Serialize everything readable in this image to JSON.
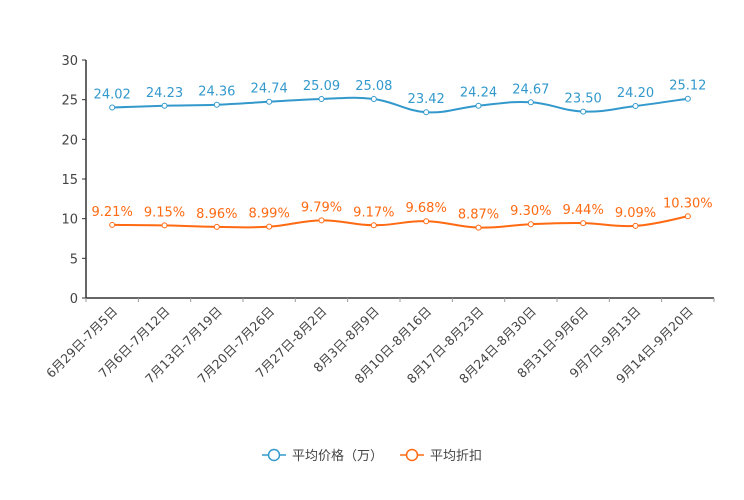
{
  "chart_data": {
    "type": "line",
    "categories": [
      "6月29日-7月5日",
      "7月6日-7月12日",
      "7月13日-7月19日",
      "7月20日-7月26日",
      "7月27日-8月2日",
      "8月3日-8月9日",
      "8月10日-8月16日",
      "8月17日-8月23日",
      "8月24日-8月30日",
      "8月31日-9月6日",
      "9月7日-9月13日",
      "9月14日-9月20日"
    ],
    "series": [
      {
        "name": "平均价格（万）",
        "color": "#3399cc",
        "values": [
          24.02,
          24.23,
          24.36,
          24.74,
          25.09,
          25.08,
          23.42,
          24.24,
          24.67,
          23.5,
          24.2,
          25.12
        ],
        "labels": [
          "24.02",
          "24.23",
          "24.36",
          "24.74",
          "25.09",
          "25.08",
          "23.42",
          "24.24",
          "24.67",
          "23.50",
          "24.20",
          "25.12"
        ]
      },
      {
        "name": "平均折扣",
        "color": "#ff6a13",
        "values": [
          9.21,
          9.15,
          8.96,
          8.99,
          9.79,
          9.17,
          9.68,
          8.87,
          9.3,
          9.44,
          9.09,
          10.3
        ],
        "labels": [
          "9.21%",
          "9.15%",
          "8.96%",
          "8.99%",
          "9.79%",
          "9.17%",
          "9.68%",
          "8.87%",
          "9.30%",
          "9.44%",
          "9.09%",
          "10.30%"
        ]
      }
    ],
    "ylim": [
      0,
      30
    ],
    "yticks": [
      "0",
      "5",
      "10",
      "15",
      "20",
      "25",
      "30"
    ],
    "legend_position": "bottom",
    "grid": false
  }
}
